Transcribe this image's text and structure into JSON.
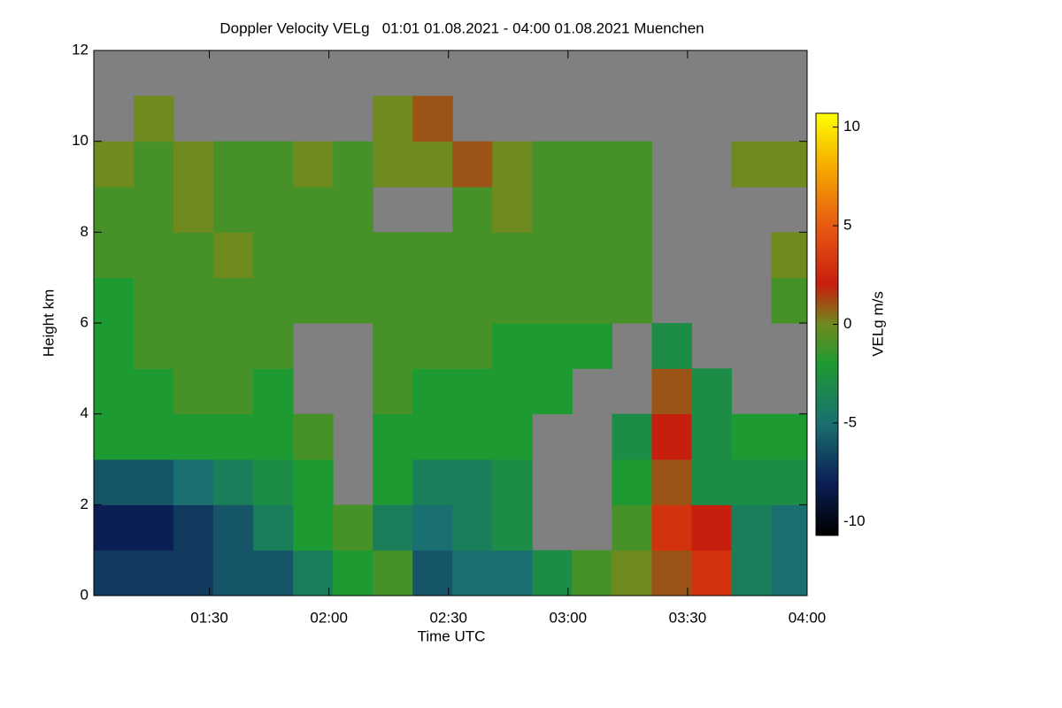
{
  "chart_data": {
    "type": "heatmap",
    "title": "Doppler Velocity VELg   01:01 01.08.2021 - 04:00 01.08.2021 Muenchen",
    "xlabel": "Time UTC",
    "ylabel": "Height km",
    "colorbar_label": "VELg m/s",
    "xlim": [
      61,
      240
    ],
    "xticks": [
      {
        "value": 90,
        "label": "01:30"
      },
      {
        "value": 120,
        "label": "02:00"
      },
      {
        "value": 150,
        "label": "02:30"
      },
      {
        "value": 180,
        "label": "03:00"
      },
      {
        "value": 210,
        "label": "03:30"
      },
      {
        "value": 240,
        "label": "04:00"
      }
    ],
    "ylim": [
      0,
      12
    ],
    "yticks": [
      0,
      2,
      4,
      6,
      8,
      10,
      12
    ],
    "clim": [
      -10.7,
      10.7
    ],
    "cticks": [
      -10,
      -5,
      0,
      5,
      10
    ],
    "nan_color": "#808080",
    "colorscale": [
      [
        -10.7,
        "#000000"
      ],
      [
        -8,
        "#0b1f55"
      ],
      [
        -5,
        "#1a7070"
      ],
      [
        -2,
        "#1e9a32"
      ],
      [
        0,
        "#6f8a1e"
      ],
      [
        2,
        "#c81e0e"
      ],
      [
        5,
        "#e85a12"
      ],
      [
        8,
        "#f5aa00"
      ],
      [
        10.7,
        "#ffff00"
      ]
    ],
    "x_edges": [
      61,
      71,
      81,
      91,
      101,
      111,
      121,
      131,
      141,
      151,
      161,
      171,
      181,
      191,
      201,
      211,
      221,
      231,
      240
    ],
    "y_edges": [
      0,
      1,
      2,
      3,
      4,
      5,
      6,
      7,
      8,
      9,
      10,
      11,
      12
    ],
    "values": [
      [
        -7,
        -7,
        -7,
        -6,
        -6,
        -4,
        -2,
        -1,
        -6,
        -5,
        -5,
        -3,
        -1,
        0,
        1,
        3,
        -4,
        -5
      ],
      [
        -8,
        -8,
        -7,
        -6,
        -4,
        -2,
        -1,
        -4,
        -5,
        -4,
        -3,
        null,
        null,
        -1,
        3,
        2,
        -4,
        -5
      ],
      [
        -6,
        -6,
        -5,
        -4,
        -3,
        -2,
        null,
        -2,
        -4,
        -4,
        -3,
        null,
        null,
        -2,
        1,
        -3,
        -3,
        -3
      ],
      [
        -2,
        -2,
        -2,
        -2,
        -2,
        -1,
        null,
        -2,
        -2,
        -2,
        -2,
        null,
        null,
        -3,
        2,
        -3,
        -2,
        -2
      ],
      [
        -2,
        -2,
        -1,
        -1,
        -2,
        null,
        null,
        -1,
        -2,
        -2,
        -2,
        -2,
        null,
        null,
        1,
        -3,
        null,
        null
      ],
      [
        -2,
        -1,
        -1,
        -1,
        -1,
        null,
        null,
        -1,
        -1,
        -1,
        -2,
        -2,
        -2,
        null,
        -3,
        null,
        null,
        null
      ],
      [
        -2,
        -1,
        -1,
        -1,
        -1,
        -1,
        -1,
        -1,
        -1,
        -1,
        -1,
        -1,
        -1,
        -1,
        null,
        null,
        null,
        -1
      ],
      [
        -1,
        -1,
        -1,
        0,
        -1,
        -1,
        -1,
        -1,
        -1,
        -1,
        -1,
        -1,
        -1,
        -1,
        null,
        null,
        null,
        0
      ],
      [
        -1,
        -1,
        0,
        -1,
        -1,
        -1,
        -1,
        null,
        null,
        -1,
        0,
        -1,
        -1,
        -1,
        null,
        null,
        null,
        null
      ],
      [
        0,
        -1,
        0,
        -1,
        -1,
        0,
        -1,
        0,
        0,
        1,
        0,
        -1,
        -1,
        -1,
        null,
        null,
        0,
        0
      ],
      [
        null,
        0,
        null,
        null,
        null,
        null,
        null,
        0,
        1,
        null,
        null,
        null,
        null,
        null,
        null,
        null,
        null,
        null
      ],
      [
        null,
        null,
        null,
        null,
        null,
        null,
        null,
        null,
        null,
        null,
        null,
        null,
        null,
        null,
        null,
        null,
        null,
        null
      ]
    ]
  }
}
